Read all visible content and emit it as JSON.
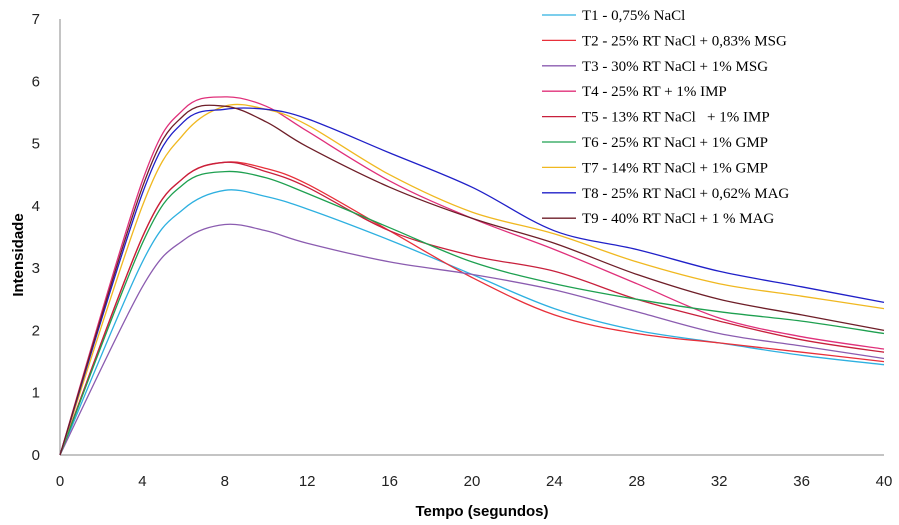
{
  "chart_data": {
    "type": "line",
    "xlabel": "Tempo (segundos)",
    "ylabel": "Intensidade",
    "xlim": [
      0,
      40
    ],
    "ylim": [
      0,
      7
    ],
    "xticks": [
      0,
      4,
      8,
      12,
      16,
      20,
      24,
      28,
      32,
      36,
      40
    ],
    "yticks": [
      0,
      1,
      2,
      3,
      4,
      5,
      6,
      7
    ],
    "grid": false,
    "legend_position": "top-right",
    "x": [
      0,
      4,
      6,
      8,
      10,
      12,
      16,
      20,
      24,
      28,
      32,
      36,
      40
    ],
    "series": [
      {
        "name": "T1 - 0,75% NaCl",
        "color": "#2EB0E0",
        "values": [
          0,
          3.1,
          3.95,
          4.25,
          4.15,
          3.95,
          3.45,
          2.9,
          2.35,
          2.0,
          1.8,
          1.6,
          1.45
        ]
      },
      {
        "name": "T2 - 25% RT NaCl + 0,83% MSG",
        "color": "#E8303A",
        "values": [
          0,
          3.5,
          4.45,
          4.7,
          4.6,
          4.35,
          3.6,
          2.85,
          2.25,
          1.95,
          1.8,
          1.65,
          1.5
        ]
      },
      {
        "name": "T3 - 30% RT NaCl + 1% MSG",
        "color": "#8B5CB0",
        "values": [
          0,
          2.7,
          3.45,
          3.7,
          3.6,
          3.4,
          3.1,
          2.9,
          2.65,
          2.3,
          1.95,
          1.75,
          1.55
        ]
      },
      {
        "name": "T4 - 25% RT + 1% IMP",
        "color": "#E0307A",
        "values": [
          0,
          4.4,
          5.55,
          5.75,
          5.6,
          5.2,
          4.4,
          3.8,
          3.3,
          2.75,
          2.2,
          1.9,
          1.7
        ]
      },
      {
        "name": "T5 - 13% RT NaCl   + 1% IMP",
        "color": "#C8203C",
        "values": [
          0,
          3.5,
          4.45,
          4.7,
          4.55,
          4.3,
          3.6,
          3.2,
          2.95,
          2.5,
          2.15,
          1.85,
          1.65
        ]
      },
      {
        "name": "T6 - 25% RT NaCl + 1% GMP",
        "color": "#1EA050",
        "values": [
          0,
          3.4,
          4.35,
          4.55,
          4.45,
          4.2,
          3.65,
          3.1,
          2.75,
          2.5,
          2.3,
          2.15,
          1.95
        ]
      },
      {
        "name": "T7 - 14% RT NaCl + 1% GMP",
        "color": "#F0B820",
        "values": [
          0,
          4.0,
          5.15,
          5.6,
          5.55,
          5.3,
          4.5,
          3.9,
          3.55,
          3.1,
          2.75,
          2.55,
          2.35
        ]
      },
      {
        "name": "T8 - 25% RT NaCl + 0,62% MAG",
        "color": "#2020C8",
        "values": [
          0,
          4.2,
          5.35,
          5.55,
          5.55,
          5.4,
          4.85,
          4.3,
          3.6,
          3.3,
          2.95,
          2.7,
          2.45
        ]
      },
      {
        "name": "T9 - 40% RT NaCl + 1 % MAG",
        "color": "#6E1E28",
        "values": [
          0,
          4.3,
          5.45,
          5.6,
          5.35,
          4.95,
          4.3,
          3.8,
          3.4,
          2.9,
          2.5,
          2.25,
          2.0
        ]
      }
    ]
  }
}
